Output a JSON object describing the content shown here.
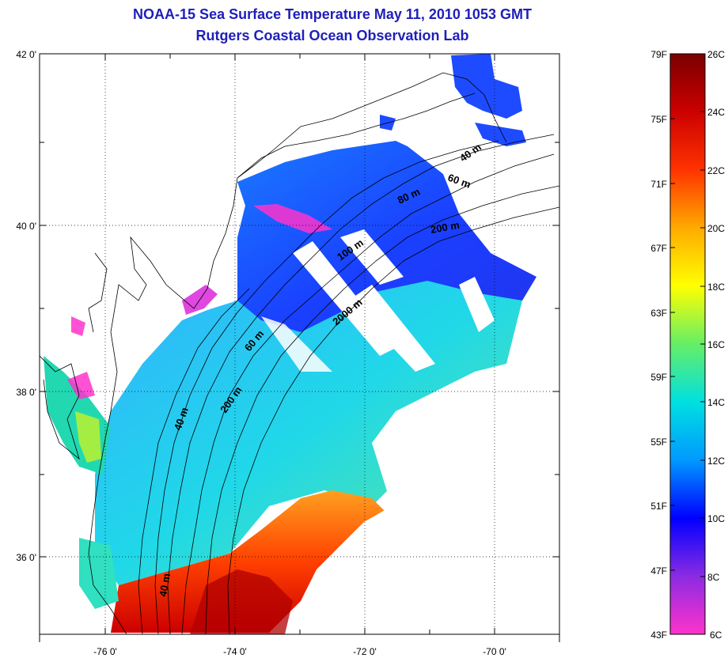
{
  "title": "NOAA-15 Sea Surface Temperature May 11, 2010 1053 GMT",
  "subtitle": "Rutgers Coastal Ocean Observation Lab",
  "map": {
    "lat_labels": [
      "42 0'",
      "40 0'",
      "38 0'",
      "36 0'"
    ],
    "lon_labels": [
      "-76 0'",
      "-74 0'",
      "-72 0'",
      "-70 0'"
    ],
    "lat_range": [
      35.0,
      42.0
    ],
    "lon_range": [
      -77.0,
      -69.0
    ],
    "grid": "dotted",
    "isobaths": [
      "40 m",
      "60 m",
      "80 m",
      "200 m",
      "100 m",
      "2000 m",
      "60 m",
      "200 m",
      "40 m",
      "40 m"
    ]
  },
  "colorbar": {
    "f_labels": [
      "79F",
      "75F",
      "71F",
      "67F",
      "63F",
      "59F",
      "55F",
      "51F",
      "47F",
      "43F"
    ],
    "c_labels": [
      "26C",
      "24C",
      "22C",
      "20C",
      "18C",
      "16C",
      "14C",
      "12C",
      "10C",
      "8C",
      "6C"
    ],
    "range_c": [
      6,
      26
    ],
    "colors": [
      "#ff33cc",
      "#8b2be2",
      "#0000ff",
      "#0099ff",
      "#00e0e0",
      "#66ee66",
      "#ffff00",
      "#ffaa00",
      "#ff3300",
      "#cc0000",
      "#7a0000"
    ]
  }
}
